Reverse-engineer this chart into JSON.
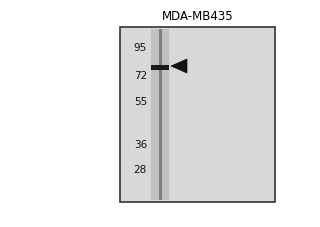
{
  "title": "MDA-MB435",
  "fig_bg": "#ffffff",
  "outer_bg": "#ffffff",
  "panel_bg": "#d8d8d8",
  "lane_bg": "#c0c0c0",
  "lane_line_color": "#808080",
  "band_color": "#1a1a1a",
  "arrow_color": "#111111",
  "border_color": "#333333",
  "mw_label_color": "#111111",
  "mw_markers": [
    95,
    72,
    55,
    36,
    28
  ],
  "band_mw": 78,
  "title_fontsize": 8.5,
  "marker_fontsize": 7.5,
  "mw_min": 22,
  "mw_max": 108
}
